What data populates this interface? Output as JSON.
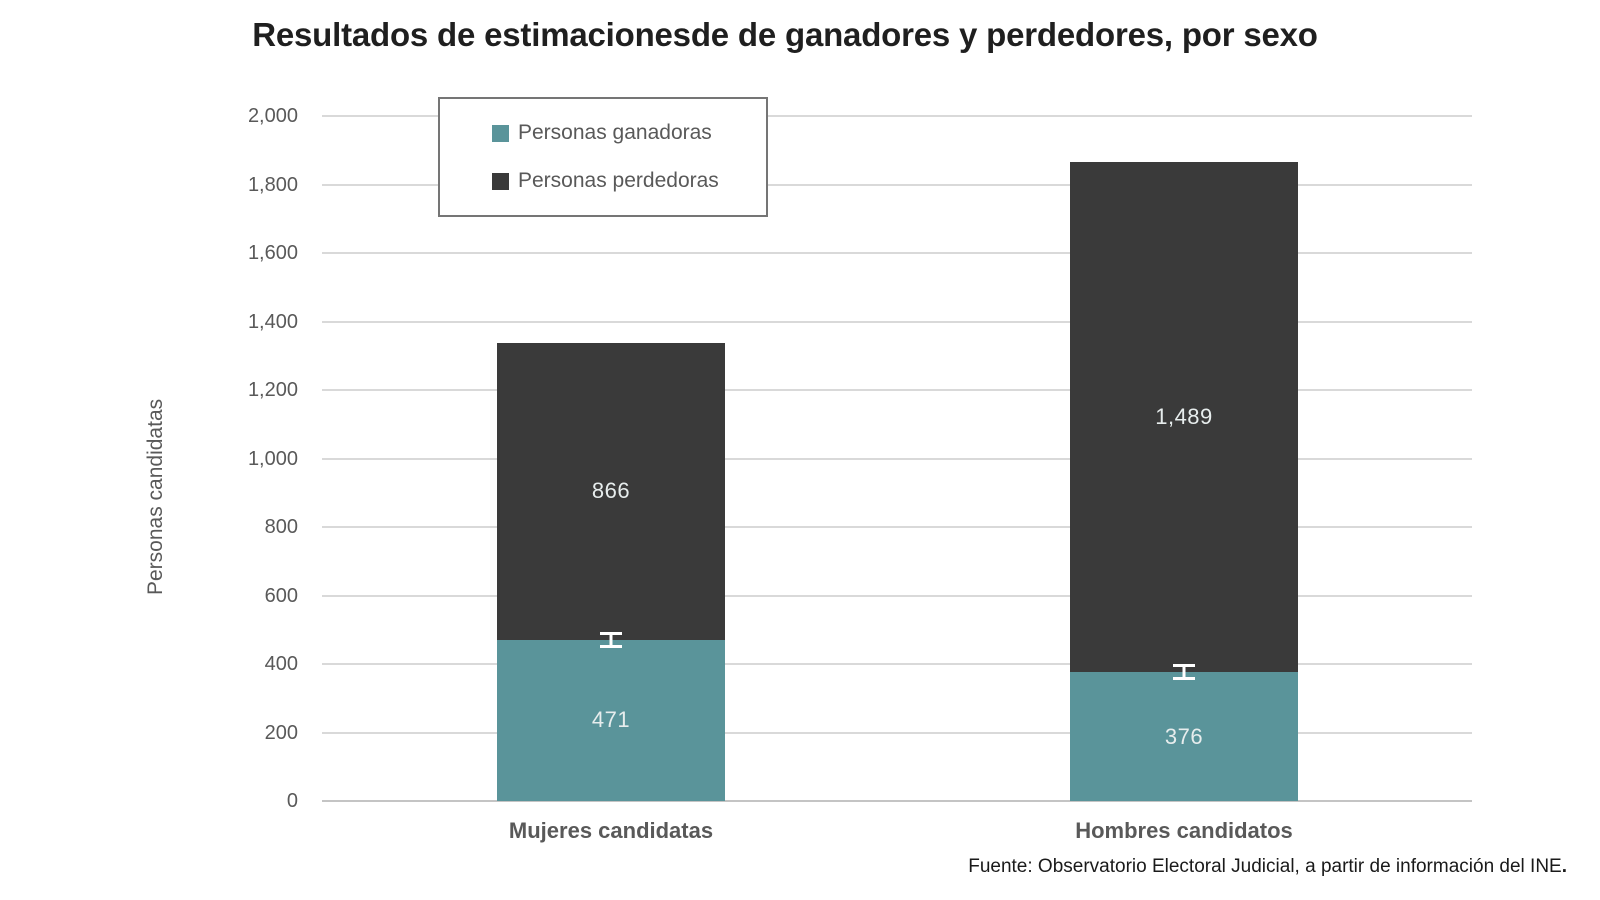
{
  "title": "Resultados de estimacionesde de ganadores y perdedores, por sexo",
  "footer": {
    "text": "Fuente: Observatorio Electoral Judicial, a partir de información del INE",
    "period": "."
  },
  "colors": {
    "winners_teal": "#5a949a",
    "losers_dark": "#3a3a3a",
    "gridline": "#d9d9d9",
    "axis_text": "#595959",
    "title_text": "#1f1f1f",
    "bar_value_text": "#e7eded",
    "error_bar": "#ffffff",
    "legend_border": "#757575"
  },
  "chart_data": {
    "type": "bar",
    "stacked": true,
    "title": "Resultados de estimacionesde de ganadores y perdedores, por sexo",
    "categories": [
      "Mujeres candidatas",
      "Hombres candidatos"
    ],
    "series": [
      {
        "name": "Personas ganadoras",
        "color": "#5a949a",
        "values": [
          471,
          376
        ],
        "labels": [
          "471",
          "376"
        ]
      },
      {
        "name": "Personas perdedoras",
        "color": "#3a3a3a",
        "values": [
          866,
          1489
        ],
        "labels": [
          "866",
          "1,489"
        ]
      }
    ],
    "totals": [
      1337,
      1865
    ],
    "xlabel": "",
    "ylabel": "Personas candidatas",
    "ylim": [
      0,
      2000
    ],
    "ytick_step": 200,
    "ytick_labels": [
      "0",
      "200",
      "400",
      "600",
      "800",
      "1,000",
      "1,200",
      "1,400",
      "1,600",
      "1,800",
      "2,000"
    ],
    "grid": true,
    "legend_position": "top-left-inset",
    "error_bars": {
      "series": "Personas ganadoras",
      "approx_half_extent_units": 22
    },
    "source": "Fuente: Observatorio Electoral Judicial, a partir de información del INE."
  }
}
